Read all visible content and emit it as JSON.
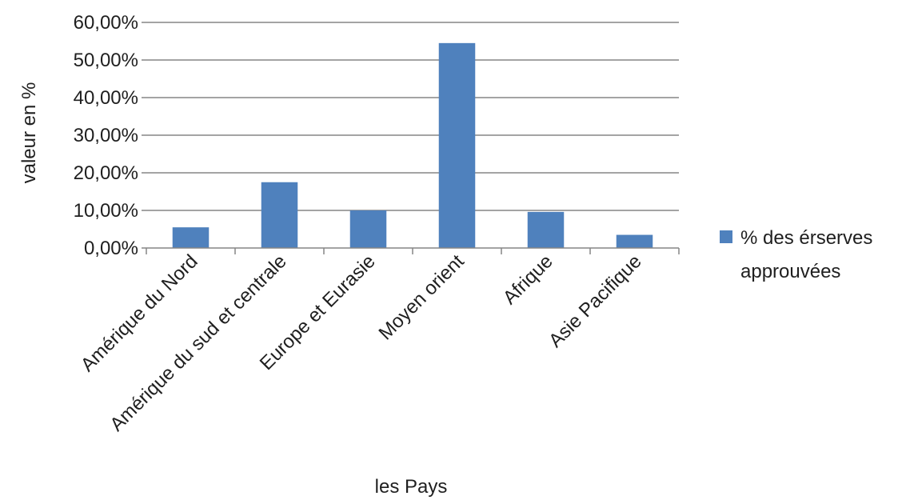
{
  "chart_data": {
    "type": "bar",
    "title": "",
    "xlabel": "les Pays",
    "ylabel": "valeur en %",
    "ylim": [
      0,
      60
    ],
    "ytick_values": [
      0,
      10,
      20,
      30,
      40,
      50,
      60
    ],
    "ytick_labels": [
      "0,00%",
      "10,00%",
      "20,00%",
      "30,00%",
      "40,00%",
      "50,00%",
      "60,00%"
    ],
    "categories": [
      "Amérique du Nord",
      "Amérique du sud et centrale",
      "Europe et Eurasie",
      "Moyen orient",
      "Afrique",
      "Asie Pacifique"
    ],
    "series": [
      {
        "name": "% des érserves approuvées",
        "values": [
          5.5,
          17.5,
          10.0,
          54.5,
          9.6,
          3.5
        ]
      }
    ],
    "legend": {
      "position": "right",
      "lines": [
        "% des érserves",
        "approuvées"
      ]
    },
    "grid": true,
    "colors": {
      "bar": "#4F81BD",
      "grid": "#868686",
      "axis": "#868686",
      "text": "#1f1f1f"
    }
  }
}
